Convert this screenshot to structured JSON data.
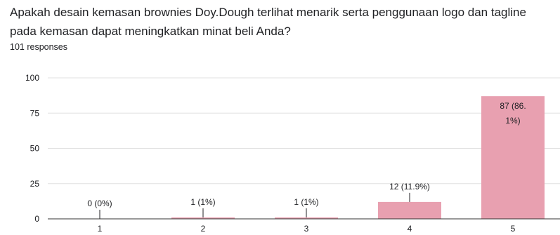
{
  "question": "Apakah desain kemasan brownies Doy.Dough terlihat menarik serta penggunaan logo dan tagline pada kemasan dapat meningkatkan minat beli Anda?",
  "response_count": "101 responses",
  "colors": {
    "bar": "#e8a0b0",
    "grid": "#e0e0e0",
    "axis": "#333333",
    "text": "#202124"
  },
  "chart_data": {
    "type": "bar",
    "categories": [
      "1",
      "2",
      "3",
      "4",
      "5"
    ],
    "values": [
      0,
      1,
      1,
      12,
      87
    ],
    "data_labels": [
      [
        "0 (0%)"
      ],
      [
        "1 (1%)"
      ],
      [
        "1 (1%)"
      ],
      [
        "12 (11.9%)"
      ],
      [
        "87 (86.",
        "1%)"
      ]
    ],
    "yticks": [
      "0",
      "25",
      "50",
      "75",
      "100"
    ],
    "ylim": [
      0,
      100
    ],
    "grid": true,
    "title": "",
    "xlabel": "",
    "ylabel": ""
  }
}
